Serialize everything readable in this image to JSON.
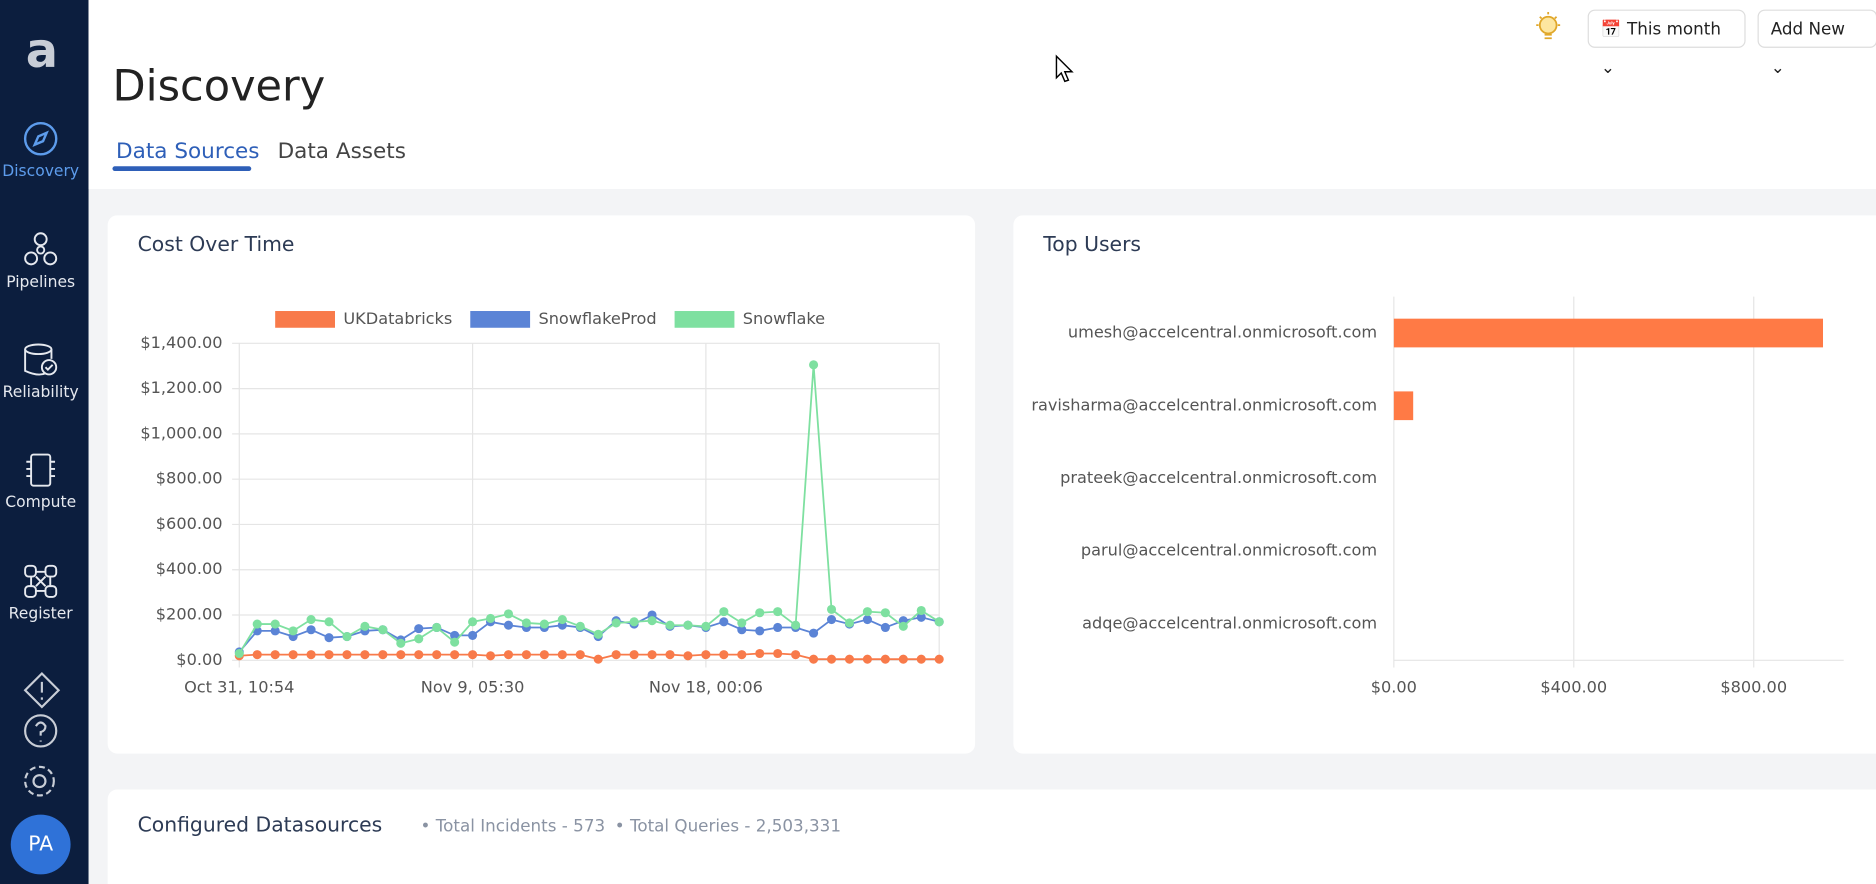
{
  "sidebar": {
    "logo": "a",
    "items": [
      "Discovery",
      "Pipelines",
      "Reliability",
      "Compute",
      "Register"
    ],
    "avatar": "PA"
  },
  "header": {
    "title": "Discovery",
    "date_filter": "This month",
    "add_button": "Add New"
  },
  "tabs": [
    "Data Sources",
    "Data Assets"
  ],
  "chart_data": [
    {
      "type": "line",
      "title": "Cost Over Time",
      "categories": [
        "Oct 31, 10:54",
        null,
        null,
        null,
        null,
        null,
        null,
        null,
        null,
        null,
        null,
        null,
        null,
        "Nov 9, 05:30",
        null,
        null,
        null,
        null,
        null,
        null,
        null,
        null,
        null,
        null,
        null,
        null,
        "Nov 18, 00:06",
        null,
        null,
        null,
        null,
        null,
        null,
        null,
        null,
        null,
        null,
        null,
        null,
        null
      ],
      "series": [
        {
          "name": "UKDatabricks",
          "color": "#f87a4a",
          "values": [
            20,
            25,
            25,
            25,
            25,
            25,
            25,
            25,
            25,
            25,
            25,
            25,
            25,
            25,
            20,
            25,
            25,
            25,
            25,
            25,
            5,
            25,
            25,
            25,
            25,
            20,
            25,
            25,
            25,
            30,
            30,
            25,
            5,
            5,
            5,
            5,
            5,
            5,
            5,
            5
          ]
        },
        {
          "name": "SnowflakeProd",
          "color": "#5b84d6",
          "values": [
            37,
            130,
            130,
            105,
            135,
            100,
            105,
            130,
            135,
            90,
            140,
            145,
            110,
            110,
            170,
            155,
            145,
            145,
            155,
            145,
            105,
            175,
            160,
            200,
            150,
            155,
            145,
            170,
            135,
            130,
            145,
            145,
            120,
            180,
            160,
            180,
            145,
            175,
            190,
            170
          ]
        },
        {
          "name": "Snowflake",
          "color": "#7ee0a0",
          "values": [
            30,
            160,
            160,
            130,
            180,
            170,
            105,
            150,
            135,
            75,
            95,
            145,
            80,
            170,
            185,
            205,
            165,
            160,
            180,
            150,
            115,
            165,
            170,
            175,
            155,
            155,
            150,
            215,
            165,
            210,
            215,
            155,
            1305,
            225,
            165,
            215,
            210,
            150,
            220,
            170
          ]
        }
      ],
      "ylim": [
        0,
        1400
      ],
      "yticks": [
        {
          "value": 0,
          "label": "$0.00"
        },
        {
          "value": 200,
          "label": "$200.00"
        },
        {
          "value": 400,
          "label": "$400.00"
        },
        {
          "value": 600,
          "label": "$600.00"
        },
        {
          "value": 800,
          "label": "$800.00"
        },
        {
          "value": 1000,
          "label": "$1,000.00"
        },
        {
          "value": 1200,
          "label": "$1,200.00"
        },
        {
          "value": 1400,
          "label": "$1,400.00"
        }
      ],
      "grid": true,
      "legend": "top"
    },
    {
      "type": "bar",
      "orientation": "horizontal",
      "title": "Top Users",
      "categories": [
        "umesh@accelcentral.onmicrosoft.com",
        "ravisharma@accelcentral.onmicrosoft.com",
        "prateek@accelcentral.onmicrosoft.com",
        "parul@accelcentral.onmicrosoft.com",
        "adqe@accelcentral.onmicrosoft.com"
      ],
      "values": [
        954,
        43,
        0,
        0,
        0
      ],
      "color": "#ff7a45",
      "xlim": [
        0,
        1000
      ],
      "xticks": [
        {
          "value": 0,
          "label": "$0.00"
        },
        {
          "value": 400,
          "label": "$400.00"
        },
        {
          "value": 800,
          "label": "$800.00"
        }
      ],
      "grid": true
    }
  ],
  "datasources": {
    "title": "Configured Datasources",
    "stats": [
      "Total Incidents - 573",
      "Total Queries - 2,503,331"
    ]
  }
}
